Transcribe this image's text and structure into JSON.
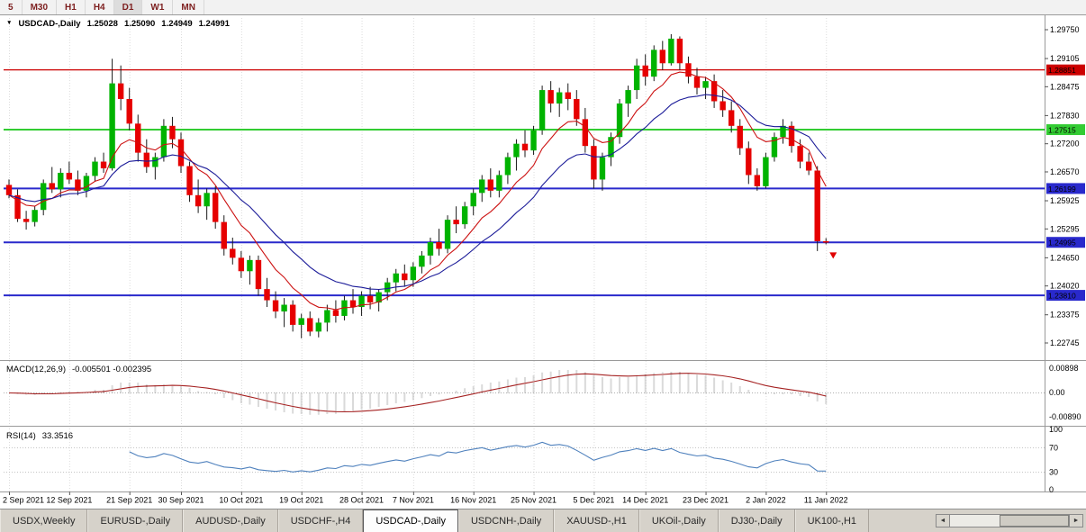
{
  "icons": {
    "dropdown": "▼",
    "scroll_left": "◄",
    "scroll_right": "►"
  },
  "toolbar": {
    "timeframes": [
      {
        "label": "5",
        "active": false
      },
      {
        "label": "M30",
        "active": false
      },
      {
        "label": "H1",
        "active": false
      },
      {
        "label": "H4",
        "active": false
      },
      {
        "label": "D1",
        "active": true
      },
      {
        "label": "W1",
        "active": false
      },
      {
        "label": "MN",
        "active": false
      }
    ]
  },
  "chart": {
    "symbol_period": "USDCAD-,Daily",
    "open": "1.25028",
    "high": "1.25090",
    "low": "1.24949",
    "close": "1.24991"
  },
  "chart_data": {
    "type": "candlestick",
    "symbol": "USDCAD",
    "timeframe": "Daily",
    "title": "USDCAD-,Daily",
    "ylim": [
      1.224,
      1.3001
    ],
    "colors": {
      "up": "#00b300",
      "down": "#e60000",
      "ma_fast": "#cc1111",
      "ma_slow": "#1c1c99",
      "macd_hist": "#b4b4b4",
      "macd_signal": "#a52222",
      "rsi_line": "#4f81bd",
      "grid": "#dcdcdc",
      "frame": "#9a9a9a"
    },
    "price_axis": [
      "1.29750",
      "1.29105",
      "1.28475",
      "1.27830",
      "1.27200",
      "1.26570",
      "1.25925",
      "1.25295",
      "1.24650",
      "1.24020",
      "1.23375",
      "1.22745"
    ],
    "hlines": [
      {
        "price": 1.28851,
        "label": "1.28851",
        "color": "#cc0000",
        "width": 1.2
      },
      {
        "price": 1.27515,
        "label": "1.27515",
        "color": "#33cc33",
        "width": 2
      },
      {
        "price": 1.26199,
        "label": "1.26199",
        "color": "#2929cc",
        "width": 2
      },
      {
        "price": 1.24995,
        "label": "1.24995",
        "color": "#2929cc",
        "width": 2
      },
      {
        "price": 1.2381,
        "label": "1.23810",
        "color": "#2929cc",
        "width": 2
      }
    ],
    "date_ticks": [
      {
        "i": 0,
        "label": "2 Sep 2021"
      },
      {
        "i": 7,
        "label": "12 Sep 2021"
      },
      {
        "i": 14,
        "label": "21 Sep 2021"
      },
      {
        "i": 20,
        "label": "30 Sep 2021"
      },
      {
        "i": 27,
        "label": "10 Oct 2021"
      },
      {
        "i": 34,
        "label": "19 Oct 2021"
      },
      {
        "i": 41,
        "label": "28 Oct 2021"
      },
      {
        "i": 47,
        "label": "7 Nov 2021"
      },
      {
        "i": 54,
        "label": "16 Nov 2021"
      },
      {
        "i": 61,
        "label": "25 Nov 2021"
      },
      {
        "i": 68,
        "label": "5 Dec 2021"
      },
      {
        "i": 74,
        "label": "14 Dec 2021"
      },
      {
        "i": 81,
        "label": "23 Dec 2021"
      },
      {
        "i": 88,
        "label": "2 Jan 2022"
      },
      {
        "i": 95,
        "label": "11 Jan 2022"
      }
    ],
    "marker": {
      "i": 95,
      "price": 1.2475,
      "type": "down-arrow",
      "color": "#e00000"
    },
    "indicators": {
      "ma_fast": {
        "type": "ema",
        "period": 8
      },
      "ma_slow": {
        "type": "ema",
        "period": 17
      },
      "macd": {
        "label": "MACD(12,26,9)",
        "values_text": "-0.005501 -0.002395",
        "fast": 12,
        "slow": 26,
        "signal": 9,
        "axis": [
          "0.00898",
          "0.00",
          "-0.00890"
        ]
      },
      "rsi": {
        "label": "RSI(14)",
        "value_text": "33.3516",
        "period": 14,
        "axis": [
          "100",
          "70",
          "30",
          "0"
        ],
        "levels": [
          70,
          30
        ]
      }
    },
    "candles": [
      [
        1.2628,
        1.264,
        1.2598,
        1.2605
      ],
      [
        1.2605,
        1.2618,
        1.2545,
        1.2552
      ],
      [
        1.2552,
        1.257,
        1.2528,
        1.2545
      ],
      [
        1.2545,
        1.258,
        1.2535,
        1.2572
      ],
      [
        1.2572,
        1.264,
        1.256,
        1.2632
      ],
      [
        1.2632,
        1.2668,
        1.261,
        1.2618
      ],
      [
        1.2618,
        1.2665,
        1.26,
        1.2655
      ],
      [
        1.2655,
        1.268,
        1.263,
        1.264
      ],
      [
        1.264,
        1.266,
        1.2605,
        1.2615
      ],
      [
        1.2615,
        1.2655,
        1.26,
        1.2648
      ],
      [
        1.2648,
        1.269,
        1.2635,
        1.268
      ],
      [
        1.268,
        1.27,
        1.2655,
        1.2665
      ],
      [
        1.2665,
        1.291,
        1.266,
        1.2855
      ],
      [
        1.2855,
        1.2895,
        1.2795,
        1.282
      ],
      [
        1.282,
        1.2845,
        1.275,
        1.2765
      ],
      [
        1.2765,
        1.2785,
        1.268,
        1.27
      ],
      [
        1.27,
        1.273,
        1.2655,
        1.2668
      ],
      [
        1.2668,
        1.27,
        1.264,
        1.269
      ],
      [
        1.269,
        1.2775,
        1.268,
        1.276
      ],
      [
        1.276,
        1.278,
        1.271,
        1.273
      ],
      [
        1.273,
        1.2745,
        1.2655,
        1.267
      ],
      [
        1.267,
        1.268,
        1.259,
        1.2605
      ],
      [
        1.2605,
        1.264,
        1.2565,
        1.258
      ],
      [
        1.258,
        1.262,
        1.255,
        1.261
      ],
      [
        1.261,
        1.2625,
        1.253,
        1.2545
      ],
      [
        1.2545,
        1.256,
        1.247,
        1.2485
      ],
      [
        1.2485,
        1.251,
        1.245,
        1.2465
      ],
      [
        1.2465,
        1.248,
        1.242,
        1.2435
      ],
      [
        1.2435,
        1.247,
        1.2405,
        1.246
      ],
      [
        1.246,
        1.247,
        1.238,
        1.2395
      ],
      [
        1.2395,
        1.242,
        1.2355,
        1.237
      ],
      [
        1.237,
        1.239,
        1.233,
        1.2345
      ],
      [
        1.2345,
        1.2375,
        1.231,
        1.236
      ],
      [
        1.236,
        1.237,
        1.23,
        1.2315
      ],
      [
        1.2315,
        1.234,
        1.2285,
        1.233
      ],
      [
        1.233,
        1.2345,
        1.229,
        1.23
      ],
      [
        1.23,
        1.233,
        1.2287,
        1.232
      ],
      [
        1.232,
        1.236,
        1.23,
        1.2348
      ],
      [
        1.2348,
        1.237,
        1.232,
        1.2335
      ],
      [
        1.2335,
        1.238,
        1.2325,
        1.237
      ],
      [
        1.237,
        1.2395,
        1.234,
        1.2355
      ],
      [
        1.2355,
        1.239,
        1.2335,
        1.238
      ],
      [
        1.238,
        1.24,
        1.235,
        1.2365
      ],
      [
        1.2365,
        1.2395,
        1.2345,
        1.2388
      ],
      [
        1.2388,
        1.242,
        1.237,
        1.241
      ],
      [
        1.241,
        1.244,
        1.239,
        1.243
      ],
      [
        1.243,
        1.245,
        1.24,
        1.2415
      ],
      [
        1.2415,
        1.2455,
        1.24,
        1.2445
      ],
      [
        1.2445,
        1.248,
        1.243,
        1.247
      ],
      [
        1.247,
        1.251,
        1.245,
        1.25
      ],
      [
        1.25,
        1.253,
        1.247,
        1.2485
      ],
      [
        1.2485,
        1.256,
        1.2475,
        1.255
      ],
      [
        1.255,
        1.258,
        1.252,
        1.254
      ],
      [
        1.254,
        1.259,
        1.253,
        1.258
      ],
      [
        1.258,
        1.262,
        1.256,
        1.261
      ],
      [
        1.261,
        1.265,
        1.259,
        1.264
      ],
      [
        1.264,
        1.2665,
        1.26,
        1.2615
      ],
      [
        1.2615,
        1.266,
        1.26,
        1.265
      ],
      [
        1.265,
        1.27,
        1.263,
        1.269
      ],
      [
        1.269,
        1.273,
        1.266,
        1.272
      ],
      [
        1.272,
        1.275,
        1.269,
        1.2705
      ],
      [
        1.2705,
        1.276,
        1.2695,
        1.275
      ],
      [
        1.275,
        1.285,
        1.274,
        1.284
      ],
      [
        1.284,
        1.286,
        1.279,
        1.281
      ],
      [
        1.281,
        1.2845,
        1.278,
        1.2835
      ],
      [
        1.2835,
        1.2855,
        1.2795,
        1.282
      ],
      [
        1.282,
        1.284,
        1.276,
        1.2775
      ],
      [
        1.2775,
        1.28,
        1.27,
        1.2715
      ],
      [
        1.2715,
        1.273,
        1.262,
        1.264
      ],
      [
        1.264,
        1.27,
        1.2615,
        1.269
      ],
      [
        1.269,
        1.2745,
        1.267,
        1.2735
      ],
      [
        1.2735,
        1.282,
        1.272,
        1.281
      ],
      [
        1.281,
        1.285,
        1.278,
        1.284
      ],
      [
        1.284,
        1.291,
        1.282,
        1.2895
      ],
      [
        1.2895,
        1.292,
        1.285,
        1.287
      ],
      [
        1.287,
        1.294,
        1.286,
        1.293
      ],
      [
        1.293,
        1.295,
        1.2885,
        1.29
      ],
      [
        1.29,
        1.2965,
        1.2895,
        1.2955
      ],
      [
        1.2955,
        1.296,
        1.2885,
        1.29
      ],
      [
        1.29,
        1.2915,
        1.2855,
        1.287
      ],
      [
        1.287,
        1.289,
        1.283,
        1.2845
      ],
      [
        1.2845,
        1.287,
        1.282,
        1.286
      ],
      [
        1.286,
        1.2875,
        1.28,
        1.2815
      ],
      [
        1.2815,
        1.284,
        1.278,
        1.2795
      ],
      [
        1.2795,
        1.2815,
        1.2745,
        1.276
      ],
      [
        1.276,
        1.2775,
        1.2695,
        1.271
      ],
      [
        1.271,
        1.2725,
        1.263,
        1.265
      ],
      [
        1.265,
        1.2665,
        1.2615,
        1.2625
      ],
      [
        1.2625,
        1.27,
        1.262,
        1.269
      ],
      [
        1.269,
        1.2745,
        1.268,
        1.2735
      ],
      [
        1.2735,
        1.2775,
        1.272,
        1.276
      ],
      [
        1.276,
        1.277,
        1.27,
        1.2715
      ],
      [
        1.2715,
        1.273,
        1.2665,
        1.268
      ],
      [
        1.268,
        1.27,
        1.265,
        1.266
      ],
      [
        1.266,
        1.267,
        1.248,
        1.2502
      ],
      [
        1.2502,
        1.2509,
        1.2495,
        1.2499
      ]
    ]
  },
  "tabs": {
    "items": [
      {
        "label": "USDX,Weekly",
        "active": false
      },
      {
        "label": "EURUSD-,Daily",
        "active": false
      },
      {
        "label": "AUDUSD-,Daily",
        "active": false
      },
      {
        "label": "USDCHF-,H4",
        "active": false
      },
      {
        "label": "USDCAD-,Daily",
        "active": true
      },
      {
        "label": "USDCNH-,Daily",
        "active": false
      },
      {
        "label": "XAUUSD-,H1",
        "active": false
      },
      {
        "label": "UKOil-,Daily",
        "active": false
      },
      {
        "label": "DJ30-,Daily",
        "active": false
      },
      {
        "label": "UK100-,H1",
        "active": false
      }
    ]
  }
}
